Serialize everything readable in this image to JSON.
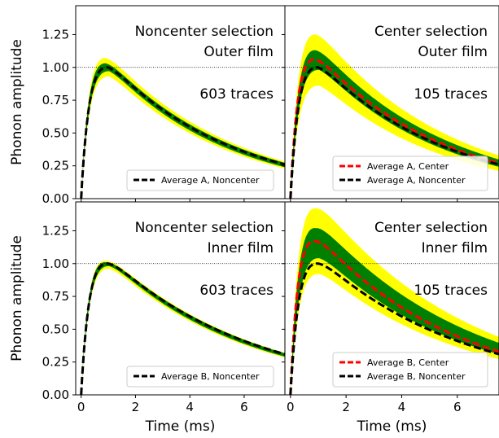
{
  "chart_data": [
    {
      "type": "line",
      "annotation_lines": [
        "Noncenter selection",
        "Outer film"
      ],
      "trace_count": "603 traces",
      "ylabel": "Phonon amplitude",
      "xlabel": "",
      "xlim": [
        -0.2,
        7.5
      ],
      "ylim": [
        0,
        1.47
      ],
      "reference_line_y": 1.0,
      "x_ticks": [],
      "y_ticks": [
        "0.00",
        "0.25",
        "0.50",
        "0.75",
        "1.00",
        "1.25"
      ],
      "series": [
        {
          "name": "Average A, Noncenter",
          "color": "#000000",
          "style": "dashed",
          "peak_x": 1.0,
          "peak_y": 1.0,
          "y_end": 0.26
        }
      ],
      "bands": [
        {
          "color": "#ffff00",
          "upper_peak_y": 1.07,
          "lower_peak_y": 0.93
        },
        {
          "color": "#008000",
          "upper_peak_y": 1.03,
          "lower_peak_y": 0.97
        }
      ],
      "legend": {
        "placement": "lower right",
        "entries": [
          "Average A, Noncenter"
        ]
      }
    },
    {
      "type": "line",
      "annotation_lines": [
        "Center selection",
        "Outer film"
      ],
      "trace_count": "105 traces",
      "ylabel": "",
      "xlabel": "",
      "xlim": [
        -0.2,
        7.5
      ],
      "ylim": [
        0,
        1.47
      ],
      "reference_line_y": 1.0,
      "x_ticks": [],
      "y_ticks": [],
      "series": [
        {
          "name": "Average A, Center",
          "color": "#ff0000",
          "style": "dashed",
          "peak_x": 0.9,
          "peak_y": 1.06,
          "y_end": 0.27
        },
        {
          "name": "Average A, Noncenter",
          "color": "#000000",
          "style": "dashed",
          "peak_x": 1.0,
          "peak_y": 1.0,
          "y_end": 0.26
        }
      ],
      "bands": [
        {
          "color": "#ffff00",
          "upper_peak_y": 1.25,
          "lower_peak_y": 0.86
        },
        {
          "color": "#008000",
          "upper_peak_y": 1.13,
          "lower_peak_y": 0.98
        }
      ],
      "legend": {
        "placement": "lower right",
        "entries": [
          "Average A, Center",
          "Average A, Noncenter"
        ]
      }
    },
    {
      "type": "line",
      "annotation_lines": [
        "Noncenter selection",
        "Inner film"
      ],
      "trace_count": "603 traces",
      "ylabel": "Phonon amplitude",
      "xlabel": "Time (ms)",
      "xlim": [
        -0.2,
        7.5
      ],
      "ylim": [
        0,
        1.47
      ],
      "reference_line_y": 1.0,
      "x_ticks": [
        "0",
        "2",
        "4",
        "6"
      ],
      "y_ticks": [
        "0.00",
        "0.25",
        "0.50",
        "0.75",
        "1.00",
        "1.25"
      ],
      "series": [
        {
          "name": "Average B, Noncenter",
          "color": "#000000",
          "style": "dashed",
          "peak_x": 1.0,
          "peak_y": 1.0,
          "y_end": 0.31
        }
      ],
      "bands": [
        {
          "color": "#ffff00",
          "upper_peak_y": 1.02,
          "lower_peak_y": 0.96
        },
        {
          "color": "#008000",
          "upper_peak_y": 1.01,
          "lower_peak_y": 0.98
        }
      ],
      "legend": {
        "placement": "lower right",
        "entries": [
          "Average B, Noncenter"
        ]
      }
    },
    {
      "type": "line",
      "annotation_lines": [
        "Center selection",
        "Inner film"
      ],
      "trace_count": "105 traces",
      "ylabel": "",
      "xlabel": "Time (ms)",
      "xlim": [
        -0.2,
        7.5
      ],
      "ylim": [
        0,
        1.47
      ],
      "reference_line_y": 1.0,
      "x_ticks": [
        "0",
        "2",
        "4",
        "6"
      ],
      "y_ticks": [],
      "series": [
        {
          "name": "Average B, Center",
          "color": "#ff0000",
          "style": "dashed",
          "peak_x": 0.9,
          "peak_y": 1.17,
          "y_end": 0.33
        },
        {
          "name": "Average B, Noncenter",
          "color": "#000000",
          "style": "dashed",
          "peak_x": 1.0,
          "peak_y": 1.0,
          "y_end": 0.31
        }
      ],
      "bands": [
        {
          "color": "#ffff00",
          "upper_peak_y": 1.42,
          "lower_peak_y": 0.92
        },
        {
          "color": "#008000",
          "upper_peak_y": 1.27,
          "lower_peak_y": 1.04
        }
      ],
      "legend": {
        "placement": "lower right",
        "entries": [
          "Average B, Center",
          "Average B, Noncenter"
        ]
      }
    }
  ]
}
